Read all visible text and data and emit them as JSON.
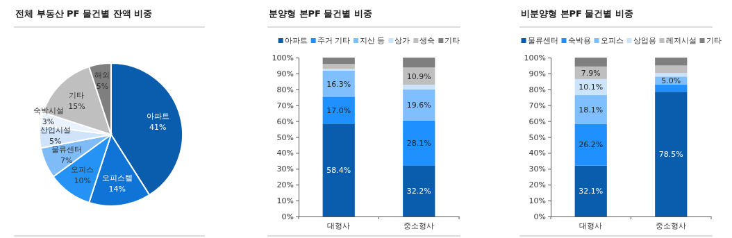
{
  "chart_data": [
    {
      "type": "pie",
      "title": "전체 부동산 PF 물건별 잔액 비중",
      "categories": [
        "아파트",
        "오피스텔",
        "오피스",
        "물류센터",
        "산업시설",
        "숙박시설",
        "기타",
        "해외"
      ],
      "values": [
        41,
        14,
        10,
        7,
        5,
        3,
        15,
        5
      ],
      "colors": [
        "#0a5cad",
        "#0f74d6",
        "#2592f5",
        "#7fbcf7",
        "#cfe3fa",
        "#e9f2fd",
        "#bfbfbf",
        "#7f7f7f"
      ],
      "value_labels": [
        "41%",
        "14%",
        "10%",
        "7%",
        "5%",
        "3%",
        "15%",
        "5%"
      ]
    },
    {
      "type": "bar",
      "stacked": true,
      "title": "분양형 본PF 물건별 비중",
      "categories": [
        "대형사",
        "중소형사"
      ],
      "legend": "top",
      "grid": false,
      "ylim": [
        0,
        100
      ],
      "yticks": [
        {
          "value": 0,
          "label": "0%"
        },
        {
          "value": 10,
          "label": "10%"
        },
        {
          "value": 20,
          "label": "20%"
        },
        {
          "value": 30,
          "label": "30%"
        },
        {
          "value": 40,
          "label": "40%"
        },
        {
          "value": 50,
          "label": "50%"
        },
        {
          "value": 60,
          "label": "60%"
        },
        {
          "value": 70,
          "label": "70%"
        },
        {
          "value": 80,
          "label": "80%"
        },
        {
          "value": 90,
          "label": "90%"
        },
        {
          "value": 100,
          "label": "100%"
        }
      ],
      "series": [
        {
          "name": "아파트",
          "color": "#0a5cad",
          "values": [
            58.4,
            32.2
          ],
          "value_labels": [
            "58.4%",
            "32.2%"
          ]
        },
        {
          "name": "주거 기타",
          "color": "#1e90ff",
          "values": [
            17.0,
            28.1
          ],
          "value_labels": [
            "17.0%",
            "28.1%"
          ]
        },
        {
          "name": "지산 등",
          "color": "#80bfff",
          "values": [
            16.3,
            19.6
          ],
          "value_labels": [
            "16.3%",
            "19.6%"
          ]
        },
        {
          "name": "상가",
          "color": "#cce4fb",
          "values": [
            1.3,
            3.0
          ],
          "value_labels": [
            null,
            null
          ]
        },
        {
          "name": "생숙",
          "color": "#bfbfbf",
          "values": [
            3.0,
            10.9
          ],
          "value_labels": [
            null,
            "10.9%"
          ]
        },
        {
          "name": "기타",
          "color": "#7f7f7f",
          "values": [
            4.0,
            6.2
          ],
          "value_labels": [
            null,
            null
          ]
        }
      ]
    },
    {
      "type": "bar",
      "stacked": true,
      "title": "비분양형 본PF 물건별 비중",
      "categories": [
        "대형사",
        "중소형사"
      ],
      "legend": "top",
      "grid": false,
      "ylim": [
        0,
        100
      ],
      "yticks": [
        {
          "value": 0,
          "label": "0%"
        },
        {
          "value": 10,
          "label": "10%"
        },
        {
          "value": 20,
          "label": "20%"
        },
        {
          "value": 30,
          "label": "30%"
        },
        {
          "value": 40,
          "label": "40%"
        },
        {
          "value": 50,
          "label": "50%"
        },
        {
          "value": 60,
          "label": "60%"
        },
        {
          "value": 70,
          "label": "70%"
        },
        {
          "value": 80,
          "label": "80%"
        },
        {
          "value": 90,
          "label": "90%"
        },
        {
          "value": 100,
          "label": "100%"
        }
      ],
      "series": [
        {
          "name": "물류센터",
          "color": "#0a5cad",
          "values": [
            32.1,
            78.5
          ],
          "value_labels": [
            "32.1%",
            "78.5%"
          ]
        },
        {
          "name": "숙박용",
          "color": "#1e90ff",
          "values": [
            26.2,
            4.6
          ],
          "value_labels": [
            "26.2%",
            null
          ]
        },
        {
          "name": "오피스",
          "color": "#80bfff",
          "values": [
            18.1,
            5.0
          ],
          "value_labels": [
            "18.1%",
            "5.0%"
          ]
        },
        {
          "name": "상업용",
          "color": "#cce4fb",
          "values": [
            10.1,
            2.2
          ],
          "value_labels": [
            "10.1%",
            null
          ]
        },
        {
          "name": "레저시설",
          "color": "#bfbfbf",
          "values": [
            7.9,
            4.7
          ],
          "value_labels": [
            "7.9%",
            null
          ]
        },
        {
          "name": "기타",
          "color": "#7f7f7f",
          "values": [
            5.6,
            5.0
          ],
          "value_labels": [
            null,
            null
          ]
        }
      ]
    }
  ]
}
